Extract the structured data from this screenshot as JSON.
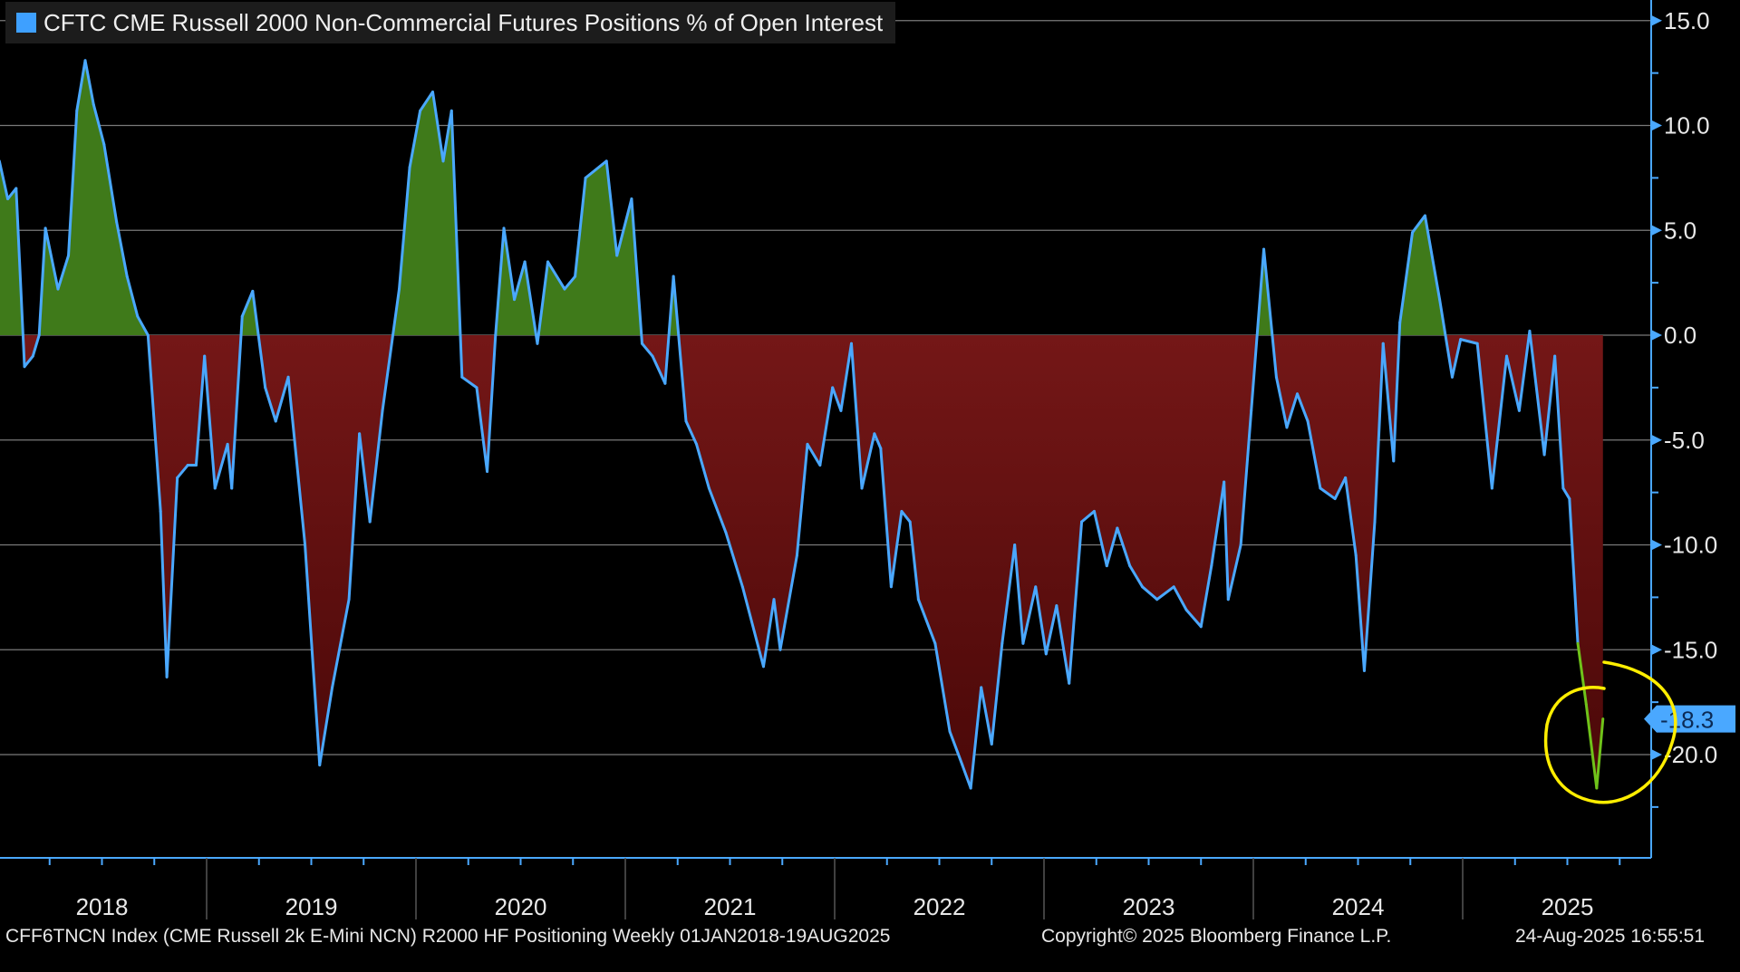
{
  "chart_data": {
    "type": "area",
    "title": "CFTC CME Russell 2000 Non-Commercial Futures Positions % of Open Interest",
    "legend": [
      {
        "label": "CFTC CME Russell 2000 Non-Commercial Futures Positions % of Open Interest",
        "color": "#3ea0ff"
      }
    ],
    "legend_position": "top-left",
    "xlabel": "",
    "ylabel": "",
    "xlim": [
      2018.0,
      2025.75
    ],
    "ylim": [
      -25,
      15
    ],
    "yticks": [
      "15.0",
      "10.0",
      "5.0",
      "0.0",
      "-5.0",
      "-10.0",
      "-15.0",
      "-20.0"
    ],
    "ytick_values": [
      15,
      10,
      5,
      0,
      -5,
      -10,
      -15,
      -20
    ],
    "xticks": [
      "2018",
      "2019",
      "2020",
      "2021",
      "2022",
      "2023",
      "2024",
      "2025"
    ],
    "grid": true,
    "last_value_label": "-18.3",
    "last_value": -18.3,
    "colors": {
      "line": "#4aa8ff",
      "positive_fill": "#3f7a1a",
      "negative_fill": "#8b1c1c",
      "highlight_line": "#6fc21a",
      "annotation": "#ffee00"
    },
    "annotation": "hand-drawn yellow circle around latest readings",
    "x": [
      2018.01,
      2018.05,
      2018.09,
      2018.13,
      2018.17,
      2018.2,
      2018.23,
      2018.29,
      2018.34,
      2018.38,
      2018.42,
      2018.46,
      2018.51,
      2018.57,
      2018.62,
      2018.67,
      2018.72,
      2018.78,
      2018.81,
      2018.86,
      2018.91,
      2018.95,
      2018.99,
      2019.04,
      2019.1,
      2019.12,
      2019.17,
      2019.22,
      2019.28,
      2019.33,
      2019.39,
      2019.47,
      2019.54,
      2019.6,
      2019.68,
      2019.73,
      2019.78,
      2019.84,
      2019.92,
      2019.97,
      2020.02,
      2020.08,
      2020.13,
      2020.17,
      2020.22,
      2020.29,
      2020.34,
      2020.38,
      2020.42,
      2020.47,
      2020.52,
      2020.58,
      2020.63,
      2020.71,
      2020.76,
      2020.81,
      2020.91,
      2020.96,
      2021.03,
      2021.08,
      2021.13,
      2021.19,
      2021.23,
      2021.29,
      2021.34,
      2021.4,
      2021.48,
      2021.56,
      2021.66,
      2021.71,
      2021.74,
      2021.82,
      2021.87,
      2021.93,
      2021.99,
      2022.03,
      2022.08,
      2022.13,
      2022.19,
      2022.22,
      2022.27,
      2022.32,
      2022.36,
      2022.4,
      2022.48,
      2022.55,
      2022.61,
      2022.65,
      2022.7,
      2022.75,
      2022.8,
      2022.86,
      2022.9,
      2022.96,
      2023.01,
      2023.06,
      2023.12,
      2023.18,
      2023.24,
      2023.3,
      2023.35,
      2023.41,
      2023.47,
      2023.54,
      2023.62,
      2023.68,
      2023.75,
      2023.8,
      2023.86,
      2023.88,
      2023.94,
      2023.99,
      2024.05,
      2024.11,
      2024.16,
      2024.21,
      2024.26,
      2024.32,
      2024.39,
      2024.44,
      2024.49,
      2024.53,
      2024.58,
      2024.62,
      2024.67,
      2024.7,
      2024.76,
      2024.82,
      2024.89,
      2024.95,
      2024.99,
      2025.07,
      2025.14,
      2025.21,
      2025.27,
      2025.32,
      2025.39,
      2025.44,
      2025.48,
      2025.51,
      2025.55,
      2025.59,
      2025.64,
      2025.67
    ],
    "y": [
      8.3,
      6.5,
      7.0,
      -1.5,
      -1.0,
      0.0,
      5.1,
      2.2,
      3.8,
      10.7,
      13.1,
      11.0,
      9.1,
      5.4,
      2.8,
      0.9,
      0.0,
      -8.4,
      -16.3,
      -6.8,
      -6.2,
      -6.2,
      -1.0,
      -7.3,
      -5.2,
      -7.3,
      0.9,
      2.1,
      -2.5,
      -4.1,
      -2.0,
      -10.0,
      -20.5,
      -16.8,
      -12.6,
      -4.7,
      -8.9,
      -3.6,
      2.2,
      8.0,
      10.7,
      11.6,
      8.3,
      10.7,
      -2.0,
      -2.5,
      -6.5,
      0.0,
      5.1,
      1.7,
      3.5,
      -0.4,
      3.5,
      2.2,
      2.8,
      7.5,
      8.3,
      3.8,
      6.5,
      -0.4,
      -1.0,
      -2.3,
      2.8,
      -4.1,
      -5.2,
      -7.3,
      -9.4,
      -12.0,
      -15.8,
      -12.6,
      -15.0,
      -10.5,
      -5.2,
      -6.2,
      -2.5,
      -3.6,
      -0.4,
      -7.3,
      -4.7,
      -5.4,
      -12.0,
      -8.4,
      -8.9,
      -12.6,
      -14.7,
      -18.9,
      -20.5,
      -21.6,
      -16.8,
      -19.5,
      -14.7,
      -10.0,
      -14.7,
      -12.0,
      -15.2,
      -12.9,
      -16.6,
      -8.9,
      -8.4,
      -11.0,
      -9.2,
      -11.0,
      -12.0,
      -12.6,
      -12.0,
      -13.1,
      -13.9,
      -11.0,
      -7.0,
      -12.6,
      -10.0,
      -3.6,
      4.1,
      -2.0,
      -4.4,
      -2.8,
      -4.1,
      -7.3,
      -7.8,
      -6.8,
      -10.5,
      -16.0,
      -8.9,
      -0.4,
      -6.0,
      0.6,
      4.9,
      5.7,
      1.7,
      -2.0,
      -0.2,
      -0.4,
      -7.3,
      -1.0,
      -3.6,
      0.2,
      -5.7,
      -1.0,
      -7.3,
      -7.8,
      -14.7,
      -17.6,
      -21.6,
      -18.3
    ]
  },
  "footer": {
    "left": "CFF6TNCN Index (CME Russell 2k E-Mini NCN) R2000 HF Positioning  Weekly 01JAN2018-19AUG2025",
    "center": "Copyright© 2025 Bloomberg Finance L.P.",
    "right": "24-Aug-2025 16:55:51"
  }
}
